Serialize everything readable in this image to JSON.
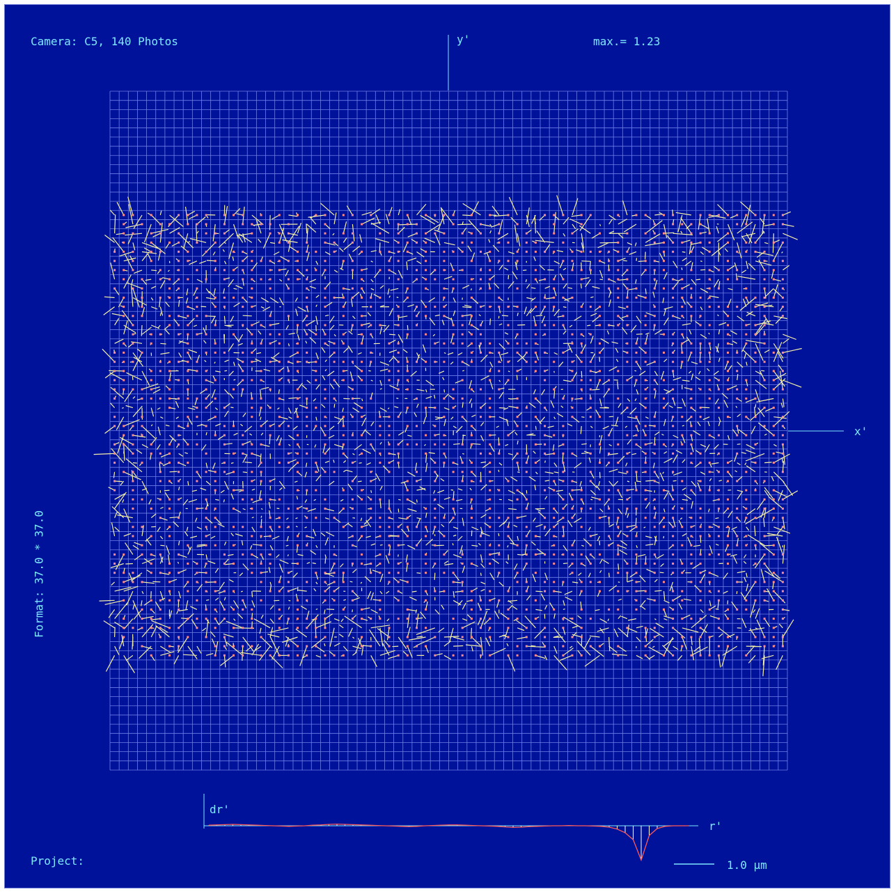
{
  "header": {
    "camera": "Camera: C5, 140 Photos",
    "max": "max.= 1.23"
  },
  "side": {
    "format": "Format: 37.0 * 37.0"
  },
  "footer": {
    "project": "Project:",
    "scale_label": "1.0 µm"
  },
  "colors": {
    "background": "#00129a",
    "grid": "#6f7fe8",
    "vector": "#f5f0a8",
    "point": "#ff8a8a",
    "text": "#7ee8ff"
  },
  "chart_data": {
    "type": "vector-field",
    "title": "",
    "xlabel": "x'",
    "ylabel": "y'",
    "grid": true,
    "max_residual": 1.23,
    "grid_cells": [
      74,
      74
    ],
    "sampled_rows": [
      13,
      61
    ],
    "sampled_cols": [
      0,
      73
    ],
    "profile": {
      "type": "line",
      "xlabel": "r'",
      "ylabel": "dr'",
      "values": [
        0.02,
        0.03,
        0.04,
        0.05,
        0.04,
        0.03,
        0.02,
        0.01,
        0.0,
        -0.01,
        -0.02,
        -0.01,
        0.0,
        0.02,
        0.03,
        0.05,
        0.06,
        0.05,
        0.04,
        0.03,
        0.02,
        0.01,
        0.0,
        -0.01,
        -0.02,
        -0.03,
        -0.02,
        0.0,
        0.01,
        0.02,
        0.03,
        0.03,
        0.02,
        0.01,
        0.0,
        -0.01,
        -0.02,
        -0.04,
        -0.06,
        -0.05,
        -0.03,
        -0.02,
        -0.01,
        0.0,
        0.0,
        0.01,
        0.0,
        0.0,
        -0.01,
        -0.02,
        -0.05,
        -0.12,
        -0.25,
        -0.5,
        -1.23,
        -0.35,
        -0.1,
        -0.02,
        0.0,
        0.0,
        0.0
      ]
    }
  }
}
